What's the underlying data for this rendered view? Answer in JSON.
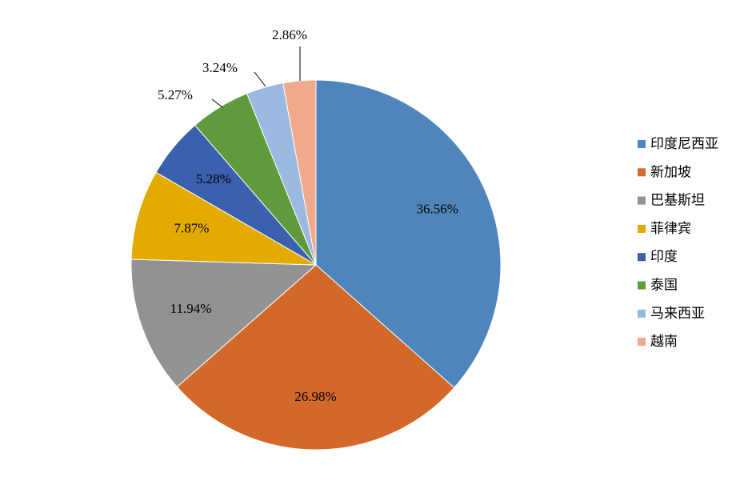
{
  "chart_data": {
    "type": "pie",
    "title": "",
    "legend_position": "right",
    "slices": [
      {
        "label": "印度尼西亚",
        "value": 36.56,
        "value_label": "36.56%",
        "color": "#4E86BC"
      },
      {
        "label": "新加坡",
        "value": 26.98,
        "value_label": "26.98%",
        "color": "#D2692A"
      },
      {
        "label": "巴基斯坦",
        "value": 11.94,
        "value_label": "11.94%",
        "color": "#929292"
      },
      {
        "label": "菲律宾",
        "value": 7.87,
        "value_label": "7.87%",
        "color": "#E3AA00"
      },
      {
        "label": "印度",
        "value": 5.28,
        "value_label": "5.28%",
        "color": "#3A60AE"
      },
      {
        "label": "泰国",
        "value": 5.27,
        "value_label": "5.27%",
        "color": "#5F9B3C"
      },
      {
        "label": "马来西亚",
        "value": 3.24,
        "value_label": "3.24%",
        "color": "#99B9E0"
      },
      {
        "label": "越南",
        "value": 2.86,
        "value_label": "2.86%",
        "color": "#F0A98A"
      }
    ]
  }
}
